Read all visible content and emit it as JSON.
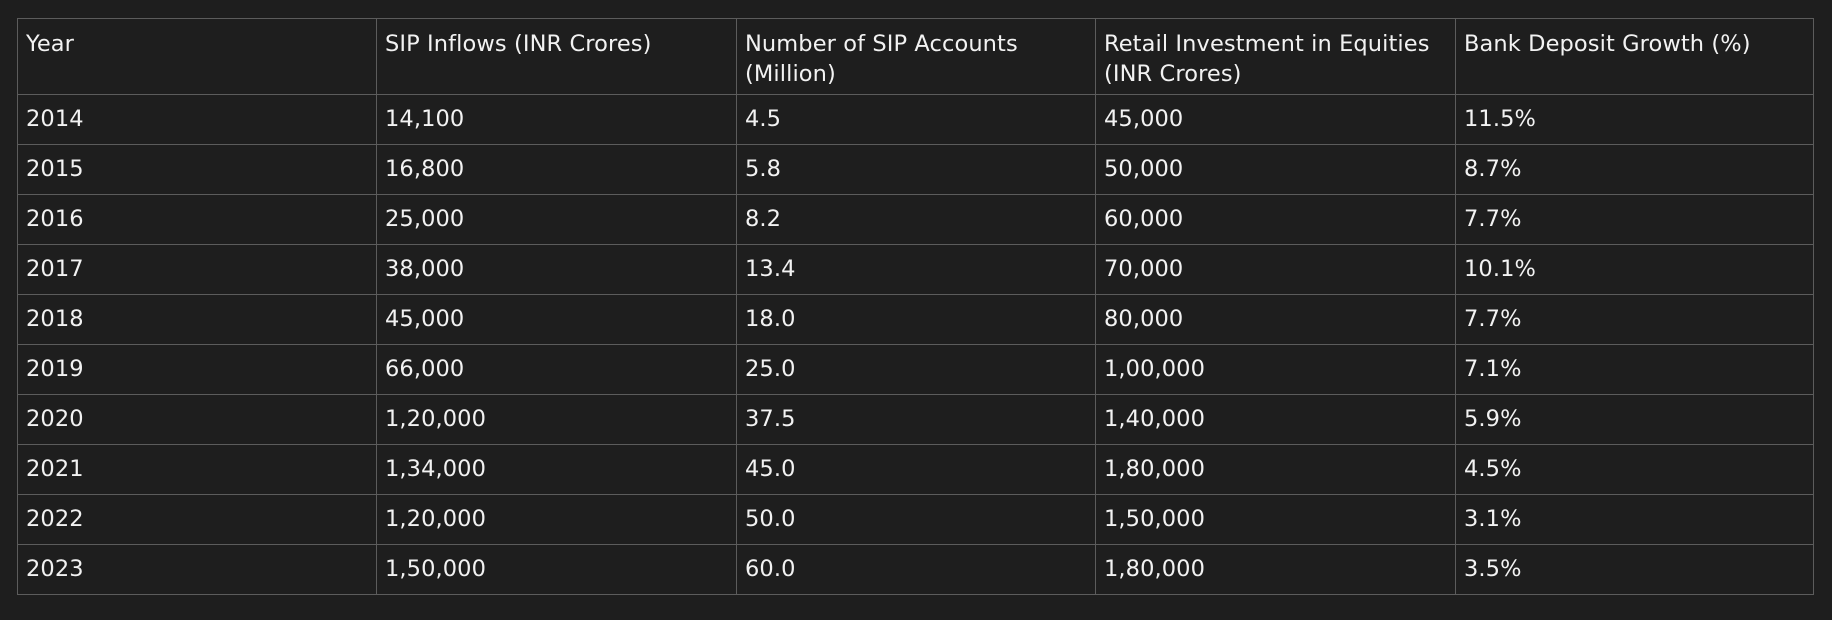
{
  "table": {
    "headers": [
      "Year",
      "SIP Inflows (INR Crores)",
      "Number of SIP Accounts (Million)",
      "Retail Investment in Equities (INR Crores)",
      "Bank Deposit Growth (%)"
    ],
    "rows": [
      [
        "2014",
        "14,100",
        "4.5",
        "45,000",
        "11.5%"
      ],
      [
        "2015",
        "16,800",
        "5.8",
        "50,000",
        "8.7%"
      ],
      [
        "2016",
        "25,000",
        "8.2",
        "60,000",
        "7.7%"
      ],
      [
        "2017",
        "38,000",
        "13.4",
        "70,000",
        "10.1%"
      ],
      [
        "2018",
        "45,000",
        "18.0",
        "80,000",
        "7.7%"
      ],
      [
        "2019",
        "66,000",
        "25.0",
        "1,00,000",
        "7.1%"
      ],
      [
        "2020",
        "1,20,000",
        "37.5",
        "1,40,000",
        "5.9%"
      ],
      [
        "2021",
        "1,34,000",
        "45.0",
        "1,80,000",
        "4.5%"
      ],
      [
        "2022",
        "1,20,000",
        "50.0",
        "1,50,000",
        "3.1%"
      ],
      [
        "2023",
        "1,50,000",
        "60.0",
        "1,80,000",
        "3.5%"
      ]
    ]
  },
  "colors": {
    "background": "#1e1e1e",
    "border": "#5c5c5c",
    "text": "#f2f2f2"
  }
}
